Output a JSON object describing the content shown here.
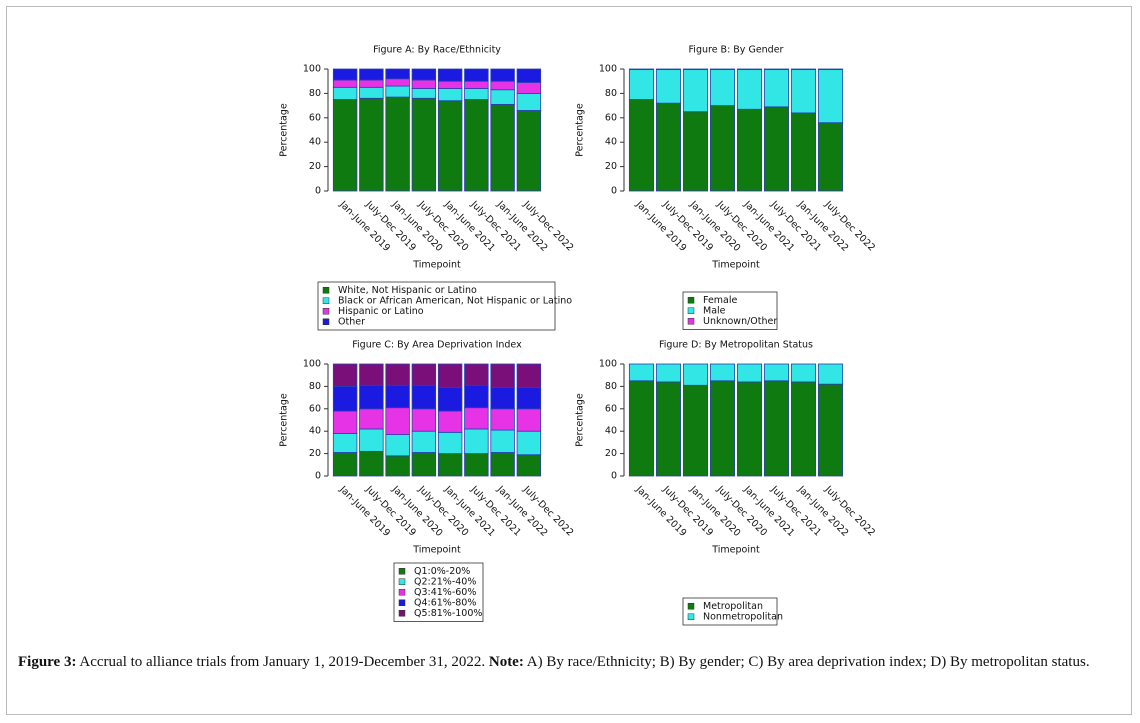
{
  "chart_data": [
    {
      "type": "bar",
      "stacked": true,
      "title": "Figure A: By Race/Ethnicity",
      "x_label": "Timepoint",
      "y_label": "Percentage",
      "categories": [
        "Jan-June 2019",
        "July-Dec 2019",
        "Jan-June 2020",
        "July-Dec 2020",
        "Jan-June 2021",
        "July-Dec 2021",
        "Jan-June 2022",
        "July-Dec 2022"
      ],
      "series": [
        {
          "name": "White, Not Hispanic or Latino",
          "color": "#0f7a0f",
          "values": [
            75,
            76,
            77,
            76,
            74,
            75,
            71,
            66
          ]
        },
        {
          "name": "Black or African American, Not Hispanic or Latino",
          "color": "#33e6e6",
          "values": [
            10,
            9,
            9,
            8,
            10,
            9,
            12,
            14
          ]
        },
        {
          "name": "Hispanic or Latino",
          "color": "#e633e6",
          "values": [
            6,
            6,
            6,
            7,
            6,
            6,
            7,
            9
          ]
        },
        {
          "name": "Other",
          "color": "#1a1ae0",
          "values": [
            9,
            9,
            8,
            9,
            10,
            10,
            10,
            11
          ]
        }
      ],
      "ylim": [
        0,
        100
      ],
      "yticks": [
        0,
        20,
        40,
        60,
        80,
        100
      ],
      "grid": false
    },
    {
      "type": "bar",
      "stacked": true,
      "title": "Figure B: By Gender",
      "x_label": "Timepoint",
      "y_label": "Percentage",
      "categories": [
        "Jan-June 2019",
        "July-Dec 2019",
        "Jan-June 2020",
        "July-Dec 2020",
        "Jan-June 2021",
        "July-Dec 2021",
        "Jan-June 2022",
        "July-Dec 2022"
      ],
      "series": [
        {
          "name": "Female",
          "color": "#0f7a0f",
          "values": [
            75,
            72,
            65,
            70,
            67,
            69,
            64,
            56
          ]
        },
        {
          "name": "Male",
          "color": "#33e6e6",
          "values": [
            24.5,
            27.5,
            34.5,
            29.5,
            32.5,
            30.5,
            35.5,
            43.5
          ]
        },
        {
          "name": "Unknown/Other",
          "color": "#e633e6",
          "values": [
            0.5,
            0.5,
            0.5,
            0.5,
            0.5,
            0.5,
            0.5,
            0.5
          ]
        }
      ],
      "ylim": [
        0,
        100
      ],
      "yticks": [
        0,
        20,
        40,
        60,
        80,
        100
      ],
      "grid": false
    },
    {
      "type": "bar",
      "stacked": true,
      "title": "Figure C: By Area Deprivation Index",
      "x_label": "Timepoint",
      "y_label": "Percentage",
      "categories": [
        "Jan-June 2019",
        "July-Dec 2019",
        "Jan-June 2020",
        "July-Dec 2020",
        "Jan-June 2021",
        "July-Dec 2021",
        "Jan-June 2022",
        "July-Dec 2022"
      ],
      "series": [
        {
          "name": "Q1:0%-20%",
          "color": "#0f7a0f",
          "values": [
            21,
            22,
            18,
            21,
            20,
            20,
            21,
            19
          ]
        },
        {
          "name": "Q2:21%-40%",
          "color": "#33e6e6",
          "values": [
            17,
            20,
            19,
            19,
            19,
            22,
            20,
            21
          ]
        },
        {
          "name": "Q3:41%-60%",
          "color": "#e633e6",
          "values": [
            20,
            18,
            24,
            20,
            19,
            19,
            19,
            20
          ]
        },
        {
          "name": "Q4:61%-80%",
          "color": "#1a1ae0",
          "values": [
            22,
            21,
            20,
            21,
            21,
            20,
            19,
            19
          ]
        },
        {
          "name": "Q5:81%-100%",
          "color": "#7a0f7a",
          "values": [
            20,
            19,
            19,
            19,
            21,
            19,
            21,
            21
          ]
        }
      ],
      "ylim": [
        0,
        100
      ],
      "yticks": [
        0,
        20,
        40,
        60,
        80,
        100
      ],
      "grid": false
    },
    {
      "type": "bar",
      "stacked": true,
      "title": "Figure D: By Metropolitan Status",
      "x_label": "Timepoint",
      "y_label": "Percentage",
      "categories": [
        "Jan-June 2019",
        "July-Dec 2019",
        "Jan-June 2020",
        "July-Dec 2020",
        "Jan-June 2021",
        "July-Dec 2021",
        "Jan-June 2022",
        "July-Dec 2022"
      ],
      "series": [
        {
          "name": "Metropolitan",
          "color": "#0f7a0f",
          "values": [
            85,
            84,
            81,
            85,
            84,
            85,
            84,
            82
          ]
        },
        {
          "name": "Nonmetropolitan",
          "color": "#33e6e6",
          "values": [
            15,
            16,
            19,
            15,
            16,
            15,
            16,
            18
          ]
        }
      ],
      "ylim": [
        0,
        100
      ],
      "yticks": [
        0,
        20,
        40,
        60,
        80,
        100
      ],
      "grid": false
    }
  ],
  "caption": {
    "label": "Figure 3:",
    "text": "Accrual to alliance trials from January 1, 2019-December 31, 2022.",
    "note_label": "Note:",
    "note_text": "A) By race/Ethnicity; B) By gender; C) By area deprivation index; D) By metropolitan status."
  }
}
